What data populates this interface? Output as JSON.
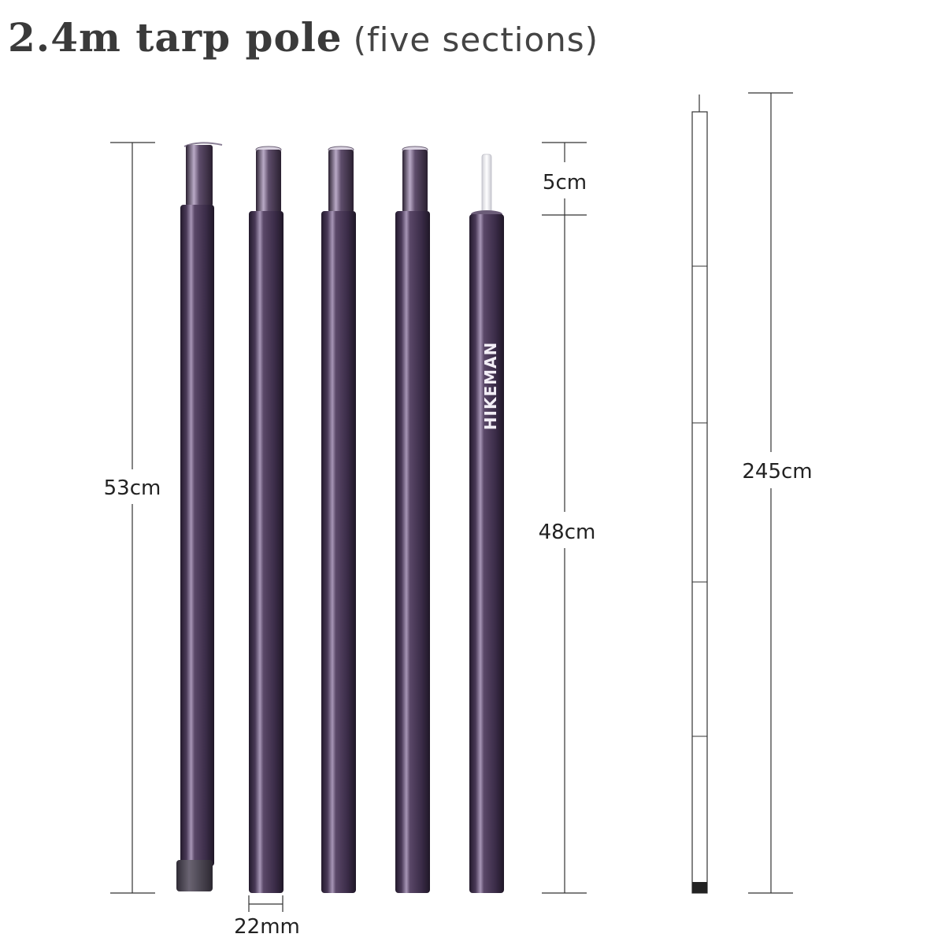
{
  "title": {
    "main": "2.4m tarp pole",
    "sub": "(five sections)"
  },
  "dimensions": {
    "section_length": "53cm",
    "tip_length": "5cm",
    "body_length": "48cm",
    "diameter": "22mm",
    "total_length": "245cm"
  },
  "brand": "HIKEMAN",
  "colors": {
    "pole": "#3f2f4c",
    "pole_dark": "#2a1f34",
    "highlight": "#9c8aad",
    "end_cap": "#4a4550"
  },
  "poles": [
    {
      "kind": "bottom-section-with-end-cap"
    },
    {
      "kind": "middle-section"
    },
    {
      "kind": "middle-section"
    },
    {
      "kind": "middle-section"
    },
    {
      "kind": "top-section-with-spike"
    }
  ],
  "assembled_pole": {
    "sections": 5
  }
}
